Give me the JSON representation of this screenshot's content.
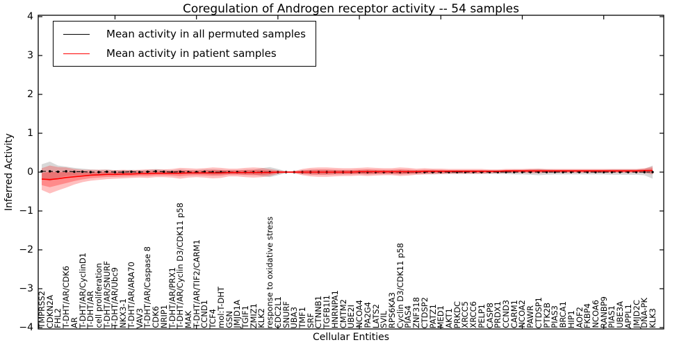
{
  "legend": {
    "items": [
      {
        "label": "Mean activity in all permuted samples",
        "color": "#000000"
      },
      {
        "label": "Mean activity in patient samples",
        "color": "#ff0000"
      }
    ],
    "position": "upper left"
  },
  "colors": {
    "permuted_line": "#000000",
    "patient_line": "#ff0000",
    "permuted_band": "#999999",
    "patient_band": "#ff0000",
    "axis": "#000000",
    "background": "#ffffff"
  },
  "chart_data": {
    "type": "line",
    "title": "Coregulation of Androgen receptor activity -- 54 samples",
    "xlabel": "Cellular Entities",
    "ylabel": "Inferred Activity",
    "ylim": [
      -4,
      4
    ],
    "yticks": [
      4,
      3,
      2,
      1,
      0,
      -1,
      -2,
      -3,
      -4
    ],
    "ytick_labels": [
      "4",
      "3",
      "2",
      "1",
      "0",
      "−1",
      "−2",
      "−3",
      "−4"
    ],
    "grid": false,
    "legend_position": "upper left",
    "categories": [
      "TMPRSS2",
      "CDKN2A",
      "FHL2",
      "T-DHT/AR/CDK6",
      "AR",
      "T-DHT/AR/CyclinD1",
      "T-DHT/AR",
      "cell proliferation",
      "T-DHT/AR/SNURF",
      "T-DHT/AR/Ubc9",
      "NKX3-1",
      "T-DHT/AR/ARA70",
      "VAV3",
      "T-DHT/AR/Caspase 8",
      "CDK6",
      "NRIP1",
      "T-DHT/AR/PRX1",
      "T-DHT/AR/Cyclin D3/CDK11 p58",
      "MAK",
      "T-DHT/AR/TIF2/CARM1",
      "CCND1",
      "TCF4",
      "mol:T-DHT",
      "GSN",
      "JMJD1A",
      "TGIF1",
      "ZMIZ1",
      "KLK2",
      "response to oxidative stress",
      "CDC2L1",
      "SNURF",
      "UBA3",
      "TMF1",
      "SRF",
      "CTNNB1",
      "TGFB1I1",
      "HNRNPA1",
      "CMTM2",
      "UBE2I",
      "NCOA4",
      "PA2G4",
      "LATS2",
      "SVIL",
      "RPS6KA3",
      "Cyclin D3/CDK11 p58",
      "PIAS4",
      "ZNF318",
      "CTDSP2",
      "PATZ1",
      "MED1",
      "AKT1",
      "PRKDC",
      "XRCC5",
      "XRCC6",
      "PELP1",
      "CASP8",
      "PRDX1",
      "CCND3",
      "CARM1",
      "NCOA2",
      "PAWR",
      "CTDSP1",
      "PTK2B",
      "PIAS3",
      "BRCA1",
      "HIP1",
      "AOF2",
      "FKBP4",
      "NCOA6",
      "RANBP9",
      "PIAS1",
      "UBE3A",
      "APPL1",
      "JMJD2C",
      "DNA-PK",
      "KLK3"
    ],
    "series": [
      {
        "name": "Mean activity in all permuted samples",
        "color": "#000000",
        "values": [
          0.02,
          0.02,
          0.01,
          0.02,
          0.01,
          0.01,
          0,
          0,
          0.01,
          0,
          0,
          0.01,
          0,
          0.01,
          0.02,
          0.01,
          0,
          0.01,
          0,
          0,
          0.01,
          0,
          0,
          0,
          0,
          0,
          0,
          0,
          0,
          0,
          0,
          0,
          0,
          0,
          0,
          0,
          0,
          0,
          0,
          0,
          0,
          0,
          0,
          0,
          0,
          0,
          0,
          0,
          0,
          0,
          0,
          0,
          0,
          0,
          0,
          0,
          0,
          0,
          0,
          0,
          0,
          0,
          0,
          0,
          0,
          0,
          0,
          0,
          0,
          0,
          0,
          0,
          0,
          0,
          0,
          0
        ],
        "band": [
          0.18,
          0.25,
          0.16,
          0.12,
          0.1,
          0.08,
          0.07,
          0.06,
          0.06,
          0.05,
          0.05,
          0.05,
          0.05,
          0.05,
          0.06,
          0.05,
          0.05,
          0.06,
          0.05,
          0.05,
          0.06,
          0.07,
          0.06,
          0.05,
          0.05,
          0.06,
          0.06,
          0.1,
          0.13,
          0.08,
          0.02,
          0.02,
          0.05,
          0.06,
          0.06,
          0.06,
          0.05,
          0.05,
          0.05,
          0.05,
          0.06,
          0.05,
          0.05,
          0.05,
          0.06,
          0.05,
          0.05,
          0.05,
          0.06,
          0.05,
          0.05,
          0.05,
          0.05,
          0.05,
          0.05,
          0.05,
          0.05,
          0.05,
          0.06,
          0.06,
          0.07,
          0.08,
          0.07,
          0.06,
          0.06,
          0.06,
          0.06,
          0.06,
          0.06,
          0.06,
          0.07,
          0.07,
          0.07,
          0.07,
          0.08,
          0.17
        ]
      },
      {
        "name": "Mean activity in patient samples",
        "color": "#ff0000",
        "values": [
          -0.18,
          -0.19,
          -0.17,
          -0.14,
          -0.12,
          -0.1,
          -0.08,
          -0.07,
          -0.06,
          -0.06,
          -0.05,
          -0.05,
          -0.04,
          -0.04,
          -0.03,
          -0.03,
          -0.03,
          -0.03,
          -0.02,
          -0.02,
          -0.02,
          -0.02,
          -0.02,
          -0.01,
          -0.01,
          -0.01,
          -0.01,
          -0.01,
          -0.01,
          0,
          0,
          0,
          0,
          0,
          0,
          0,
          0,
          0,
          0,
          0.01,
          0.01,
          0.01,
          0.01,
          0.01,
          0.01,
          0.01,
          0.01,
          0.02,
          0.02,
          0.02,
          0.02,
          0.02,
          0.02,
          0.02,
          0.02,
          0.02,
          0.02,
          0.03,
          0.03,
          0.03,
          0.03,
          0.03,
          0.03,
          0.03,
          0.03,
          0.03,
          0.03,
          0.03,
          0.03,
          0.03,
          0.03,
          0.03,
          0.03,
          0.03,
          0.04,
          0.04
        ],
        "band": [
          0.28,
          0.36,
          0.3,
          0.26,
          0.2,
          0.16,
          0.14,
          0.13,
          0.12,
          0.11,
          0.11,
          0.1,
          0.1,
          0.11,
          0.1,
          0.1,
          0.11,
          0.14,
          0.12,
          0.11,
          0.12,
          0.14,
          0.13,
          0.1,
          0.1,
          0.12,
          0.13,
          0.12,
          0.09,
          0.05,
          0.02,
          0.03,
          0.08,
          0.11,
          0.12,
          0.12,
          0.11,
          0.1,
          0.1,
          0.1,
          0.11,
          0.1,
          0.09,
          0.09,
          0.11,
          0.1,
          0.08,
          0.08,
          0.07,
          0.07,
          0.06,
          0.06,
          0.06,
          0.06,
          0.06,
          0.05,
          0.05,
          0.05,
          0.05,
          0.05,
          0.06,
          0.06,
          0.05,
          0.05,
          0.05,
          0.05,
          0.05,
          0.05,
          0.05,
          0.05,
          0.05,
          0.05,
          0.05,
          0.05,
          0.06,
          0.1
        ]
      }
    ]
  }
}
